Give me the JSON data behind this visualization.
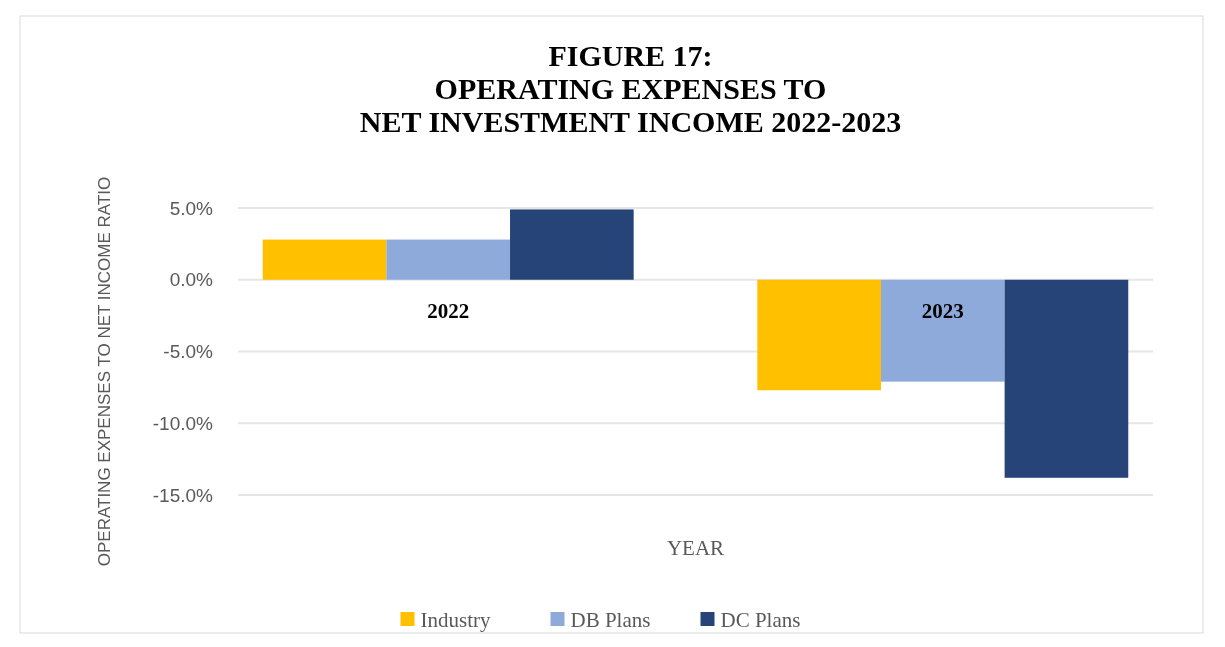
{
  "chart_data": {
    "type": "bar",
    "title": "FIGURE 17:\nOPERATING EXPENSES TO\nNET INVESTMENT INCOME 2022-2023",
    "xlabel": "YEAR",
    "ylabel": "OPERATING EXPENSES TO NET INCOME RATIO",
    "categories": [
      "2022",
      "2023"
    ],
    "series": [
      {
        "name": "Industry",
        "color": "#ffc000",
        "values": [
          2.8,
          -7.7
        ]
      },
      {
        "name": "DB Plans",
        "color": "#8eaadb",
        "values": [
          2.8,
          -7.1
        ]
      },
      {
        "name": "DC Plans",
        "color": "#264478",
        "values": [
          4.9,
          -13.8
        ]
      }
    ],
    "ylim": [
      -15,
      5
    ],
    "yticks": [
      {
        "value": 5,
        "label": "5.0%"
      },
      {
        "value": 0,
        "label": "0.0%"
      },
      {
        "value": -5,
        "label": "-5.0%"
      },
      {
        "value": -10,
        "label": "-10.0%"
      },
      {
        "value": -15,
        "label": "-15.0%"
      }
    ],
    "grid": "y",
    "legend": "bottom"
  }
}
